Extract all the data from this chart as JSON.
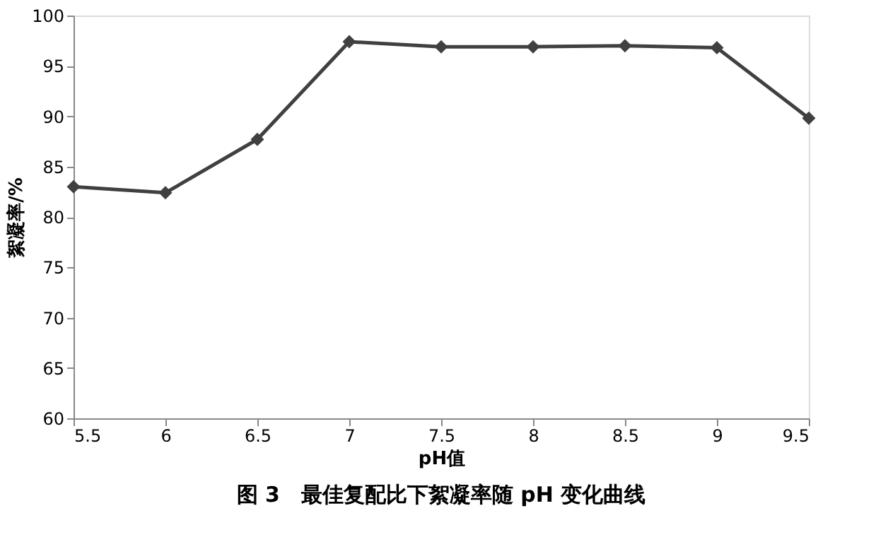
{
  "chart_data": {
    "type": "line",
    "title": "图 3　最佳复配比下絮凝率随 pH 变化曲线",
    "xlabel": "pH值",
    "ylabel": "絮凝率/%",
    "x": [
      5.5,
      6,
      6.5,
      7,
      7.5,
      8,
      8.5,
      9,
      9.5
    ],
    "series": [
      {
        "color": "#404040",
        "values": [
          83.0,
          82.4,
          87.7,
          97.4,
          96.9,
          96.9,
          97.0,
          96.8,
          89.8
        ]
      }
    ],
    "xlim": [
      5.5,
      9.5
    ],
    "xticks": [
      5.5,
      6,
      6.5,
      7,
      7.5,
      8,
      8.5,
      9,
      9.5
    ],
    "ylim": [
      60,
      100
    ],
    "yticks": [
      60,
      65,
      70,
      75,
      80,
      85,
      90,
      95,
      100
    ],
    "grid": false,
    "marker": "diamond",
    "line_style": "solid"
  }
}
